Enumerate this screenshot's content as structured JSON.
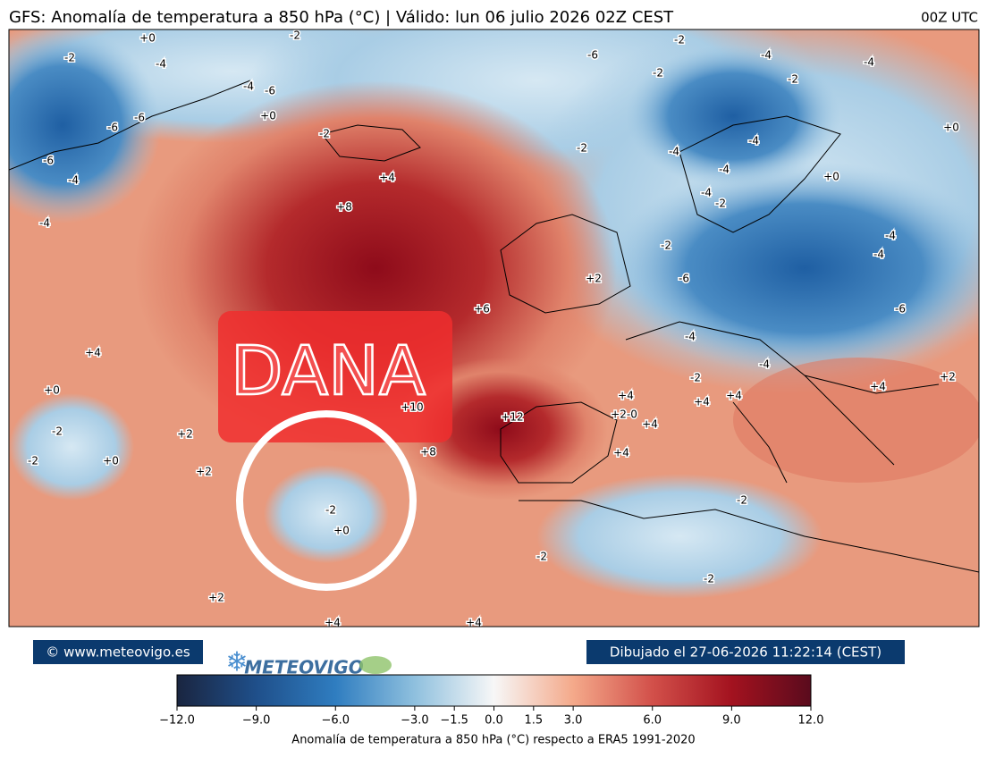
{
  "header": {
    "title": "GFS: Anomalía de temperatura a 850 hPa (°C) | Válido: lun 06 julio 2026 02Z CEST",
    "run": "00Z UTC"
  },
  "map": {
    "overlay_label": "DANA",
    "contour_labels": [
      "+0",
      "-2",
      "-4",
      "-2",
      "-6",
      "-2",
      "-4",
      "-4",
      "-2",
      "-2",
      "-4",
      "-6",
      "+0",
      "-6",
      "-6",
      "-2",
      "-6",
      "-4",
      "+4",
      "-2",
      "-4",
      "-4",
      "-4",
      "+0",
      "+0",
      "-4",
      "-2",
      "+8",
      "-4",
      "-2",
      "-4",
      "-4",
      "+2",
      "-6",
      "+6",
      "-6",
      "-4",
      "+4",
      "-4",
      "+0",
      "-2",
      "+4",
      "+2",
      "+4",
      "+4",
      "+4",
      "+10",
      "+12",
      "+2-0",
      "+4",
      "-2",
      "+2",
      "+8",
      "+4",
      "-2",
      "+0",
      "+2",
      "-2",
      "+0",
      "-2",
      "-2",
      "-2",
      "+2",
      "+4",
      "+4"
    ]
  },
  "footer": {
    "copyright": "© www.meteovigo.es",
    "logo": "METEOVIGO",
    "drawn": "Dibujado el 27-06-2026 11:22:14 (CEST)"
  },
  "colorbar": {
    "label": "Anomalía de temperatura a 850 hPa (°C) respecto a ERA5 1991-2020",
    "lim": [
      -12,
      12
    ],
    "colors": [
      "#1a2540",
      "#1f4f8a",
      "#2f7dc0",
      "#8fc0de",
      "#f7f7f7",
      "#f4a98a",
      "#d2504a",
      "#a3121f",
      "#5a0b1d"
    ],
    "ticks": [
      {
        "value": -12,
        "label": "−12.0"
      },
      {
        "value": -9,
        "label": "−9.0"
      },
      {
        "value": -6,
        "label": "−6.0"
      },
      {
        "value": -3,
        "label": "−3.0"
      },
      {
        "value": -1.5,
        "label": "−1.5"
      },
      {
        "value": 0,
        "label": "0.0"
      },
      {
        "value": 1.5,
        "label": "1.5"
      },
      {
        "value": 3,
        "label": "3.0"
      },
      {
        "value": 6,
        "label": "6.0"
      },
      {
        "value": 9,
        "label": "9.0"
      },
      {
        "value": 12,
        "label": "12.0"
      }
    ]
  }
}
